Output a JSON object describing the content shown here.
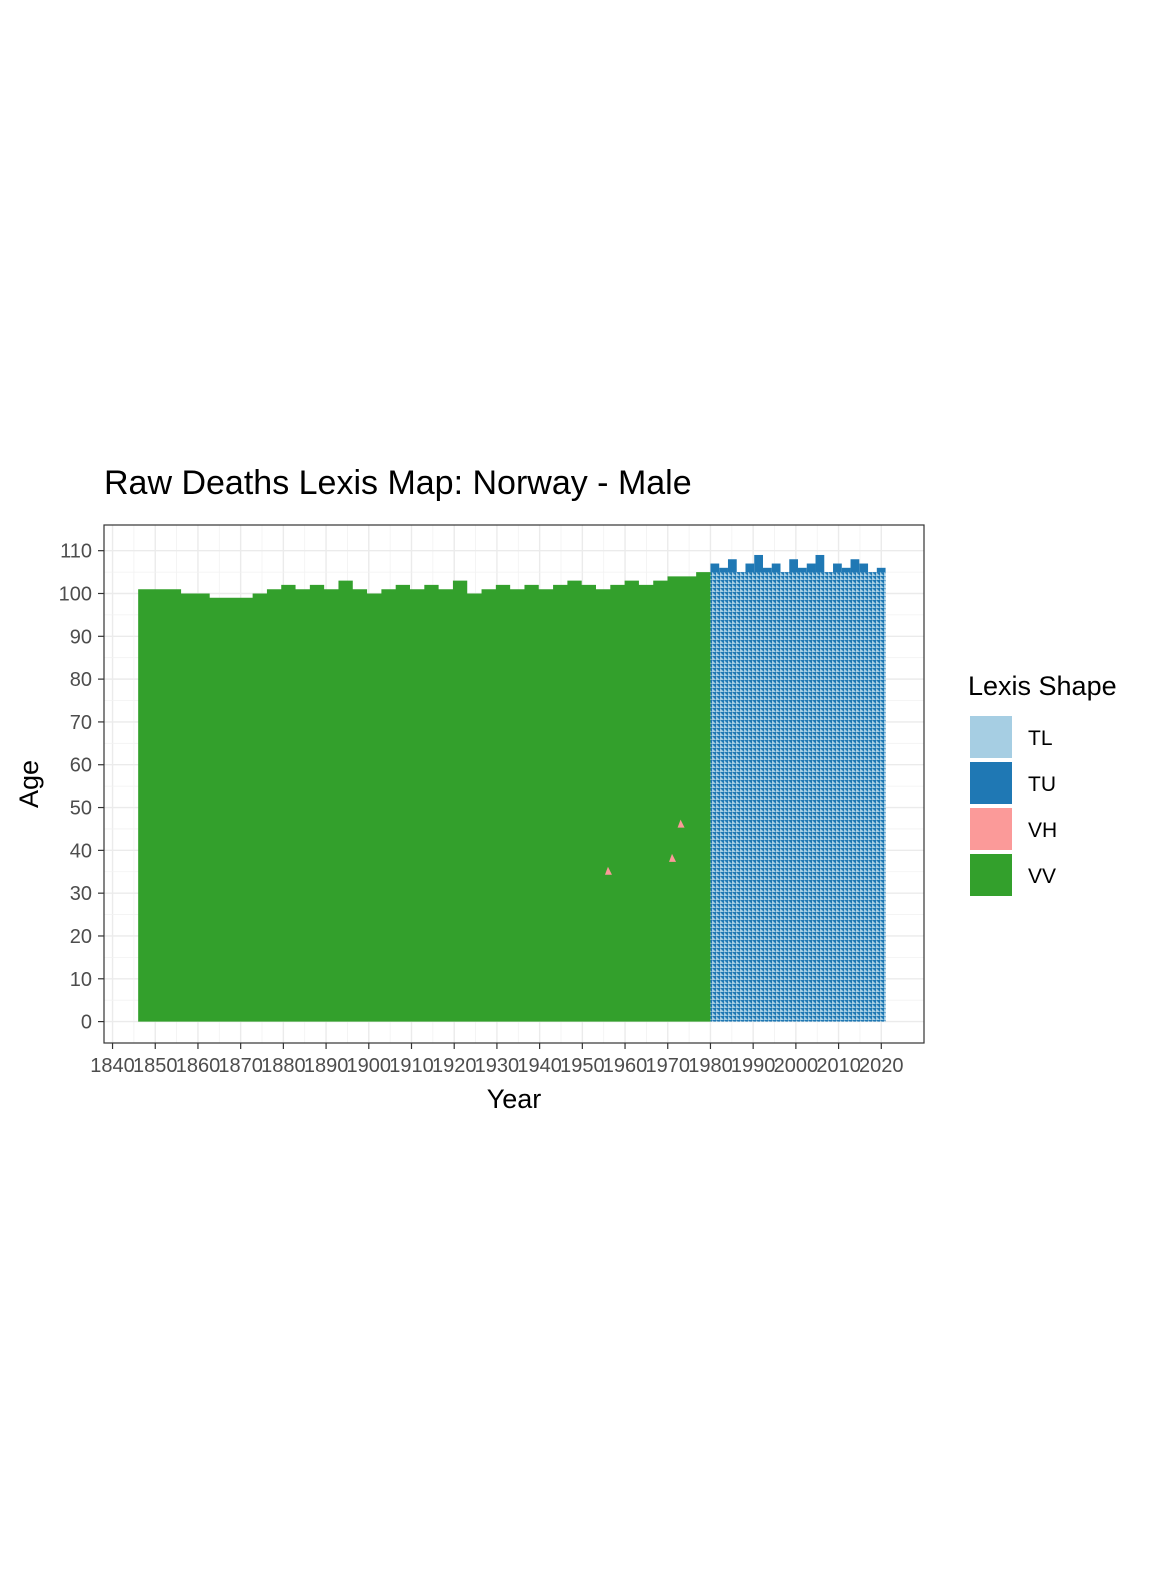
{
  "chart_data": {
    "type": "heatmap",
    "title": "Raw Deaths Lexis Map: Norway - Male",
    "xlabel": "Year",
    "ylabel": "Age",
    "xlim": [
      1838,
      2030
    ],
    "ylim": [
      -5,
      116
    ],
    "x_ticks": [
      1840,
      1850,
      1860,
      1870,
      1880,
      1890,
      1900,
      1910,
      1920,
      1930,
      1940,
      1950,
      1960,
      1970,
      1980,
      1990,
      2000,
      2010,
      2020
    ],
    "y_ticks": [
      0,
      10,
      20,
      30,
      40,
      50,
      60,
      70,
      80,
      90,
      100,
      110
    ],
    "grid": true,
    "legend": {
      "title": "Lexis Shape",
      "placement": "right",
      "entries": [
        {
          "label": "TL",
          "color": "#A6CEE3"
        },
        {
          "label": "TU",
          "color": "#1F78B4"
        },
        {
          "label": "VH",
          "color": "#FB9A99"
        },
        {
          "label": "VV",
          "color": "#33A02C"
        }
      ]
    },
    "regions": [
      {
        "shape": "VV",
        "x_from": 1846,
        "x_to": 1980,
        "age_from": 0,
        "age_to": 101,
        "top_edge_ages": [
          101,
          101,
          101,
          100,
          100,
          99,
          99,
          99,
          100,
          101,
          102,
          101,
          102,
          101,
          103,
          101,
          100,
          101,
          102,
          101,
          102,
          101,
          103,
          100,
          101,
          102,
          101,
          102,
          101,
          102,
          103,
          102,
          101,
          102,
          103,
          102,
          103,
          104,
          104,
          105
        ]
      },
      {
        "shape": "TL",
        "x_from": 1980,
        "x_to": 2021,
        "age_from": 0,
        "age_to": 105
      },
      {
        "shape": "TU",
        "x_from": 1980,
        "x_to": 2021,
        "age_from": 0,
        "age_to": 105
      }
    ],
    "points": [
      {
        "shape": "VH",
        "year": 1956,
        "age": 35
      },
      {
        "shape": "VH",
        "year": 1971,
        "age": 38
      },
      {
        "shape": "VH",
        "year": 1973,
        "age": 46
      }
    ]
  }
}
